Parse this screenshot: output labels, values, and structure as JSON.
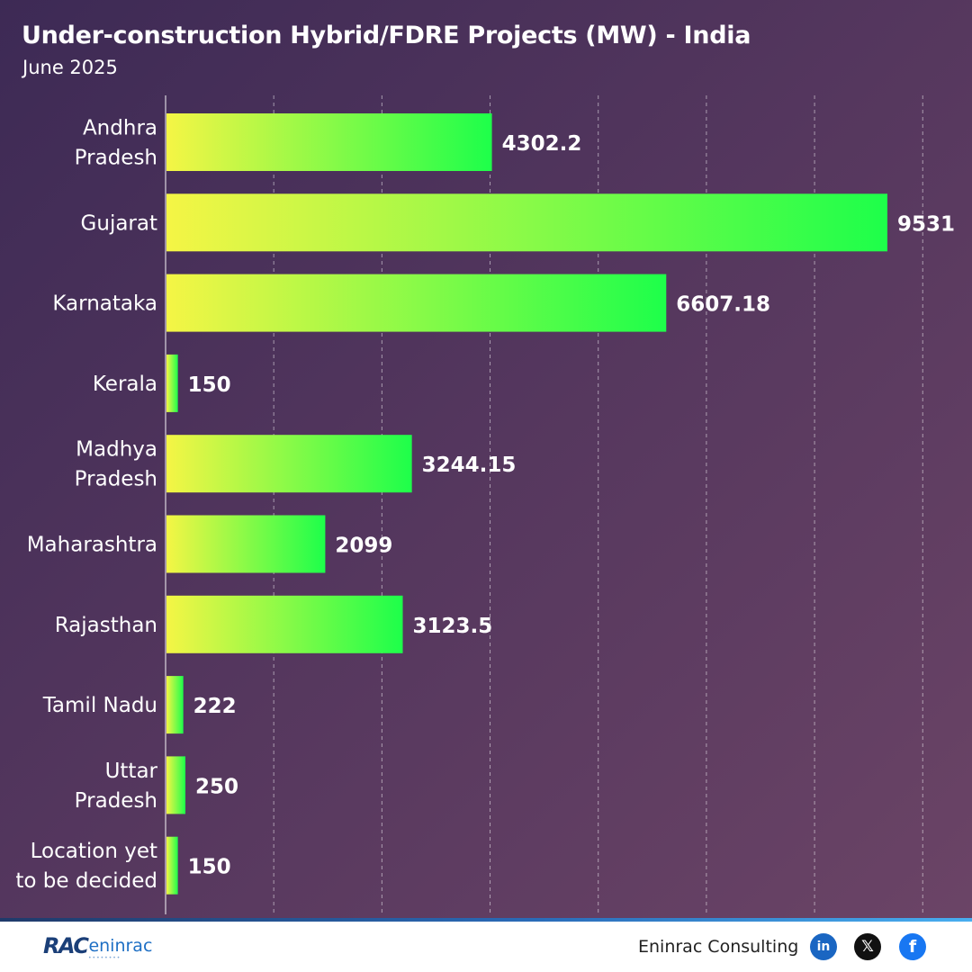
{
  "header": {
    "title": "Under-construction Hybrid/FDRE Projects (MW) - India",
    "subtitle": "June 2025"
  },
  "chart_data": {
    "type": "bar",
    "orientation": "horizontal",
    "categories": [
      [
        "Andhra",
        "Pradesh"
      ],
      [
        "Gujarat"
      ],
      [
        "Karnataka"
      ],
      [
        "Kerala"
      ],
      [
        "Madhya",
        "Pradesh"
      ],
      [
        "Maharashtra"
      ],
      [
        "Rajasthan"
      ],
      [
        "Tamil Nadu"
      ],
      [
        "Uttar",
        "Pradesh"
      ],
      [
        "Location yet",
        "to be decided"
      ]
    ],
    "values": [
      4302.2,
      9531,
      6607.18,
      150,
      3244.15,
      2099,
      3123.5,
      222,
      250,
      150
    ],
    "value_labels": [
      "4302.2",
      "9531",
      "6607.18",
      "150",
      "3244.15",
      "2099",
      "3123.5",
      "222",
      "250",
      "150"
    ],
    "xlim": [
      0,
      10000
    ],
    "grid_interval": 1430,
    "grid": "vertical dashed",
    "bar_gradient": [
      "#f5f545",
      "#1dff4a"
    ],
    "label_color": "#ffffff"
  },
  "footer": {
    "logo_rac": "RAC",
    "logo_eninrac": "eninrac",
    "company": "Eninrac Consulting",
    "social": [
      {
        "name": "linkedin",
        "glyph": "in"
      },
      {
        "name": "x-twitter",
        "glyph": "𝕏"
      },
      {
        "name": "facebook",
        "glyph": "f"
      }
    ]
  }
}
